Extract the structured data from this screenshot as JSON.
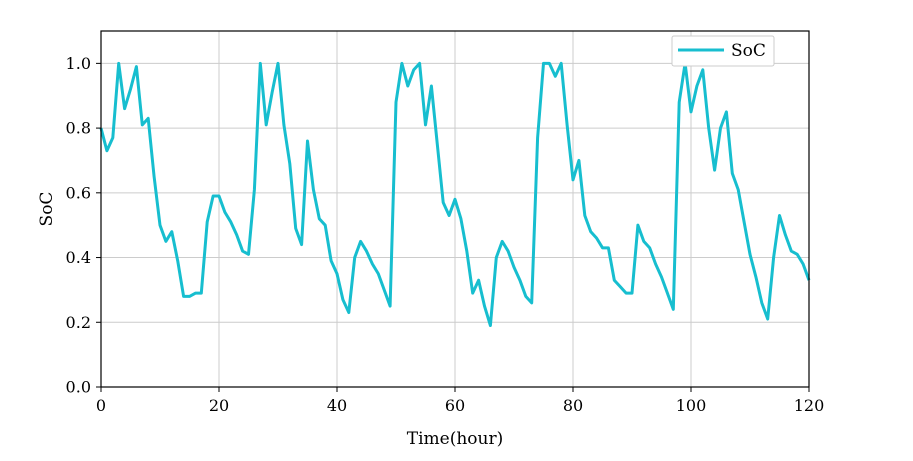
{
  "chart_data": {
    "type": "line",
    "title": "",
    "xlabel": "Time(hour)",
    "ylabel": "SoC",
    "xlim": [
      0,
      120
    ],
    "ylim": [
      0,
      1.1
    ],
    "xticks": [
      0,
      20,
      40,
      60,
      80,
      100,
      120
    ],
    "yticks": [
      0.0,
      0.2,
      0.4,
      0.6,
      0.8,
      1.0
    ],
    "xtick_labels": [
      "0",
      "20",
      "40",
      "60",
      "80",
      "100",
      "120"
    ],
    "ytick_labels": [
      "0.0",
      "0.2",
      "0.4",
      "0.6",
      "0.8",
      "1.0"
    ],
    "grid": true,
    "legend_position": "top-right",
    "series": [
      {
        "name": "SoC",
        "color": "#17becf",
        "x": [
          0,
          1,
          2,
          3,
          4,
          5,
          6,
          7,
          8,
          9,
          10,
          11,
          12,
          13,
          14,
          15,
          16,
          17,
          18,
          19,
          20,
          21,
          22,
          23,
          24,
          25,
          26,
          27,
          28,
          29,
          30,
          31,
          32,
          33,
          34,
          35,
          36,
          37,
          38,
          39,
          40,
          41,
          42,
          43,
          44,
          45,
          46,
          47,
          48,
          49,
          50,
          51,
          52,
          53,
          54,
          55,
          56,
          57,
          58,
          59,
          60,
          61,
          62,
          63,
          64,
          65,
          66,
          67,
          68,
          69,
          70,
          71,
          72,
          73,
          74,
          75,
          76,
          77,
          78,
          79,
          80,
          81,
          82,
          83,
          84,
          85,
          86,
          87,
          88,
          89,
          90,
          91,
          92,
          93,
          94,
          95,
          96,
          97,
          98,
          99,
          100,
          101,
          102,
          103,
          104,
          105,
          106,
          107,
          108,
          109,
          110,
          111,
          112,
          113,
          114,
          115,
          116,
          117,
          118,
          119,
          120
        ],
        "values": [
          0.8,
          0.73,
          0.77,
          1.0,
          0.86,
          0.92,
          0.99,
          0.81,
          0.83,
          0.65,
          0.5,
          0.45,
          0.48,
          0.39,
          0.28,
          0.28,
          0.29,
          0.29,
          0.51,
          0.59,
          0.59,
          0.54,
          0.51,
          0.47,
          0.42,
          0.41,
          0.61,
          1.0,
          0.81,
          0.91,
          1.0,
          0.81,
          0.69,
          0.49,
          0.44,
          0.76,
          0.61,
          0.52,
          0.5,
          0.39,
          0.35,
          0.27,
          0.23,
          0.4,
          0.45,
          0.42,
          0.38,
          0.35,
          0.3,
          0.25,
          0.88,
          1.0,
          0.93,
          0.98,
          1.0,
          0.81,
          0.93,
          0.75,
          0.57,
          0.53,
          0.58,
          0.52,
          0.42,
          0.29,
          0.33,
          0.25,
          0.19,
          0.4,
          0.45,
          0.42,
          0.37,
          0.33,
          0.28,
          0.26,
          0.77,
          1.0,
          1.0,
          0.96,
          1.0,
          0.81,
          0.64,
          0.7,
          0.53,
          0.48,
          0.46,
          0.43,
          0.43,
          0.33,
          0.31,
          0.29,
          0.29,
          0.5,
          0.45,
          0.43,
          0.38,
          0.34,
          0.29,
          0.24,
          0.88,
          1.0,
          0.85,
          0.93,
          0.98,
          0.8,
          0.67,
          0.8,
          0.85,
          0.66,
          0.61,
          0.51,
          0.41,
          0.34,
          0.26,
          0.21,
          0.4,
          0.53,
          0.47,
          0.42,
          0.41,
          0.38,
          0.33
        ]
      }
    ]
  }
}
